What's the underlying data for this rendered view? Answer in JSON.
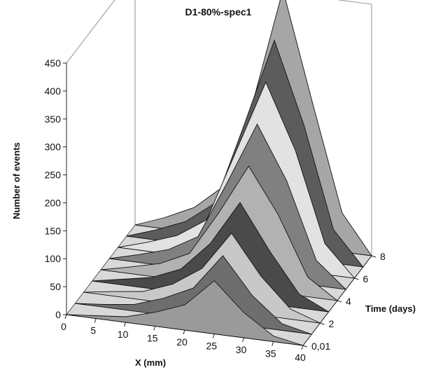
{
  "chart_data": {
    "type": "area",
    "subtype": "3d-surface",
    "title": "D1-80%-spec1",
    "xlabel": "X (mm)",
    "ylabel": "Number of events",
    "zlabel": "Time (days)",
    "x": [
      0,
      5,
      10,
      15,
      20,
      25,
      30,
      35,
      40
    ],
    "x_ticks": [
      "0",
      "5",
      "10",
      "15",
      "20",
      "25",
      "30",
      "35",
      "40"
    ],
    "y_ticks": [
      "0",
      "50",
      "100",
      "150",
      "200",
      "250",
      "300",
      "350",
      "400",
      "450"
    ],
    "z_ticks": [
      "0,01",
      "2",
      "4",
      "6",
      "8"
    ],
    "ylim": [
      0,
      450
    ],
    "series": [
      {
        "time": "0,01",
        "values": [
          0,
          5,
          10,
          25,
          45,
          95,
          45,
          10,
          0
        ]
      },
      {
        "time": "1",
        "values": [
          0,
          5,
          12,
          30,
          55,
          120,
          55,
          12,
          0
        ]
      },
      {
        "time": "2",
        "values": [
          0,
          8,
          15,
          35,
          70,
          140,
          70,
          18,
          0
        ]
      },
      {
        "time": "3",
        "values": [
          0,
          10,
          20,
          42,
          95,
          175,
          95,
          25,
          0
        ]
      },
      {
        "time": "4",
        "values": [
          0,
          12,
          25,
          50,
          130,
          220,
          140,
          35,
          0
        ]
      },
      {
        "time": "5",
        "values": [
          0,
          14,
          30,
          60,
          165,
          275,
          180,
          45,
          0
        ]
      },
      {
        "time": "6",
        "values": [
          0,
          16,
          35,
          70,
          200,
          330,
          215,
          55,
          0
        ]
      },
      {
        "time": "7",
        "values": [
          0,
          18,
          40,
          80,
          230,
          385,
          240,
          60,
          0
        ]
      },
      {
        "time": "8",
        "values": [
          0,
          20,
          45,
          90,
          250,
          455,
          260,
          70,
          0
        ]
      }
    ],
    "grid": false,
    "legend": "none"
  }
}
